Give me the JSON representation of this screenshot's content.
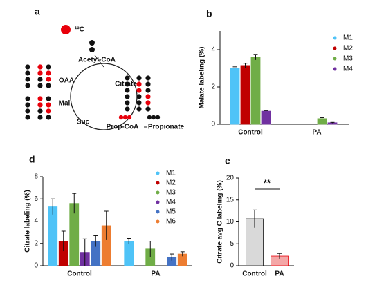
{
  "diagram": {
    "panel_label": "a",
    "isotope": "¹³C",
    "acetyl": "Acetyl-CoA",
    "oaa": "OAA",
    "citrate": "Citrate",
    "mal": "Mal",
    "suc": "Suc",
    "propcoa": "Prop-CoA",
    "propionate": "Propionate"
  },
  "chart_data": [
    {
      "type": "bar",
      "panel_label": "b",
      "ylabel": "Malate labeling (%)",
      "categories": [
        "Control",
        "PA"
      ],
      "series": [
        {
          "name": "M1",
          "color": "#4fc3f7",
          "values": [
            3.0,
            0.0
          ],
          "errors": [
            0.08,
            0.0
          ]
        },
        {
          "name": "M2",
          "color": "#c00000",
          "values": [
            3.15,
            0.0
          ],
          "errors": [
            0.12,
            0.0
          ]
        },
        {
          "name": "M3",
          "color": "#70ad47",
          "values": [
            3.6,
            0.3
          ],
          "errors": [
            0.15,
            0.05
          ]
        },
        {
          "name": "M4",
          "color": "#7030a0",
          "values": [
            0.7,
            0.08
          ],
          "errors": [
            0.03,
            0.02
          ]
        }
      ],
      "ylim": [
        0,
        5
      ],
      "yticks": [
        0,
        2,
        4
      ]
    },
    {
      "type": "bar",
      "panel_label": "d",
      "ylabel": "Citrate labeling (%)",
      "categories": [
        "Control",
        "PA"
      ],
      "series": [
        {
          "name": "M1",
          "color": "#4fc3f7",
          "values": [
            5.3,
            2.2
          ],
          "errors": [
            0.7,
            0.25
          ]
        },
        {
          "name": "M2",
          "color": "#c00000",
          "values": [
            2.2,
            0
          ],
          "errors": [
            0.9,
            0
          ]
        },
        {
          "name": "M3",
          "color": "#70ad47",
          "values": [
            5.6,
            1.5
          ],
          "errors": [
            0.9,
            0.7
          ]
        },
        {
          "name": "M4",
          "color": "#7030a0",
          "values": [
            1.2,
            0
          ],
          "errors": [
            1.2,
            0
          ]
        },
        {
          "name": "M5",
          "color": "#4472c4",
          "values": [
            2.2,
            0.75
          ],
          "errors": [
            0.5,
            0.3
          ]
        },
        {
          "name": "M6",
          "color": "#ed7d31",
          "values": [
            3.6,
            1.05
          ],
          "errors": [
            1.3,
            0.2
          ]
        }
      ],
      "ylim": [
        0,
        8
      ],
      "yticks": [
        0,
        2,
        4,
        6,
        8
      ]
    },
    {
      "type": "bar",
      "panel_label": "e",
      "ylabel": "Citrate avg C labeling (%)",
      "categories": [
        "Control",
        "PA"
      ],
      "series": [
        {
          "colors": [
            "#d9d9d9",
            "#f4a7a7"
          ],
          "values": [
            10.7,
            2.2
          ],
          "errors": [
            2.0,
            0.6
          ]
        }
      ],
      "annotation": "**",
      "ylim": [
        0,
        20
      ],
      "yticks": [
        0,
        5,
        10,
        15,
        20
      ]
    }
  ]
}
